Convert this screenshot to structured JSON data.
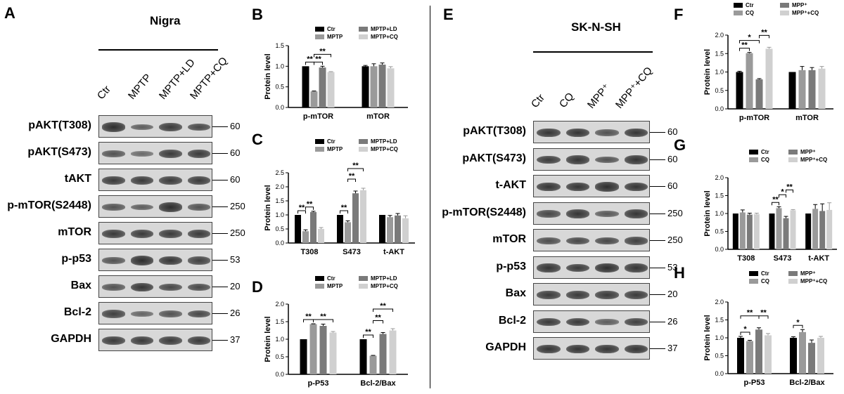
{
  "panel_labels": {
    "A": "A",
    "B": "B",
    "C": "C",
    "D": "D",
    "E": "E",
    "F": "F",
    "G": "G",
    "H": "H"
  },
  "blot_left": {
    "title": "Nigra",
    "lanes": [
      "Ctr",
      "MPTP",
      "MPTP+LD",
      "MPTP+CQ"
    ],
    "rows": [
      {
        "label": "pAKT(T308)",
        "mw": "60",
        "intensity": [
          0.9,
          0.5,
          0.8,
          0.7
        ]
      },
      {
        "label": "pAKT(S473)",
        "mw": "60",
        "intensity": [
          0.6,
          0.4,
          0.8,
          0.8
        ]
      },
      {
        "label": "tAKT",
        "mw": "60",
        "intensity": [
          0.8,
          0.8,
          0.8,
          0.8
        ]
      },
      {
        "label": "p-mTOR(S2448)",
        "mw": "250",
        "intensity": [
          0.6,
          0.5,
          0.9,
          0.6
        ]
      },
      {
        "label": "mTOR",
        "mw": "250",
        "intensity": [
          0.8,
          0.8,
          0.8,
          0.8
        ]
      },
      {
        "label": "p-p53",
        "mw": "53",
        "intensity": [
          0.6,
          0.9,
          0.85,
          0.75
        ]
      },
      {
        "label": "Bax",
        "mw": "20",
        "intensity": [
          0.6,
          0.85,
          0.7,
          0.7
        ]
      },
      {
        "label": "Bcl-2",
        "mw": "26",
        "intensity": [
          0.75,
          0.45,
          0.6,
          0.7
        ]
      },
      {
        "label": "GAPDH",
        "mw": "37",
        "intensity": [
          0.8,
          0.8,
          0.8,
          0.8
        ]
      }
    ]
  },
  "blot_right": {
    "title": "SK-N-SH",
    "lanes": [
      "Ctr",
      "CQ",
      "MPP⁺",
      "MPP⁺+CQ"
    ],
    "rows": [
      {
        "label": "pAKT(T308)",
        "mw": "60",
        "intensity": [
          0.85,
          0.85,
          0.6,
          0.85
        ]
      },
      {
        "label": "pAKT(S473)",
        "mw": "60",
        "intensity": [
          0.8,
          0.85,
          0.6,
          0.85
        ]
      },
      {
        "label": "t-AKT",
        "mw": "60",
        "intensity": [
          0.85,
          0.85,
          0.9,
          0.85
        ]
      },
      {
        "label": "p-mTOR(S2448)",
        "mw": "250",
        "intensity": [
          0.7,
          0.85,
          0.55,
          0.85
        ]
      },
      {
        "label": "mTOR",
        "mw": "250",
        "intensity": [
          0.65,
          0.7,
          0.7,
          0.75
        ]
      },
      {
        "label": "p-p53",
        "mw": "53",
        "intensity": [
          0.85,
          0.8,
          0.9,
          0.85
        ]
      },
      {
        "label": "Bax",
        "mw": "20",
        "intensity": [
          0.8,
          0.8,
          0.8,
          0.8
        ]
      },
      {
        "label": "Bcl-2",
        "mw": "26",
        "intensity": [
          0.8,
          0.8,
          0.5,
          0.75
        ]
      },
      {
        "label": "GAPDH",
        "mw": "37",
        "intensity": [
          0.85,
          0.85,
          0.85,
          0.85
        ]
      }
    ]
  },
  "chart_data": [
    {
      "panel": "B",
      "type": "bar",
      "ylabel": "Protein level",
      "ylim": [
        0,
        1.5
      ],
      "yticks": [
        "0.0",
        "0.5",
        "1.0",
        "1.5"
      ],
      "legend_layout": "2x2",
      "categories": [
        "p-mTOR",
        "mTOR"
      ],
      "series": [
        {
          "name": "Ctr",
          "color": "#000000",
          "values": [
            1.0,
            1.0
          ],
          "err": [
            0,
            0.02
          ]
        },
        {
          "name": "MPTP",
          "color": "#9a9a9a",
          "values": [
            0.39,
            1.0
          ],
          "err": [
            0.01,
            0.06
          ]
        },
        {
          "name": "MPTP+LD",
          "color": "#7a7a7a",
          "values": [
            0.97,
            1.04
          ],
          "err": [
            0.03,
            0.04
          ]
        },
        {
          "name": "MPTP+CQ",
          "color": "#d0d0d0",
          "values": [
            0.86,
            0.95
          ],
          "err": [
            0.01,
            0.04
          ]
        }
      ],
      "sig": [
        {
          "cat": 0,
          "from": 0,
          "to": 1,
          "label": "**",
          "level": 0
        },
        {
          "cat": 0,
          "from": 1,
          "to": 2,
          "label": "**",
          "level": 0
        },
        {
          "cat": 0,
          "from": 1,
          "to": 3,
          "label": "**",
          "level": 1
        }
      ]
    },
    {
      "panel": "C",
      "type": "bar",
      "ylabel": "Protein level",
      "ylim": [
        0,
        2.5
      ],
      "yticks": [
        "0.0",
        "0.5",
        "1.0",
        "1.5",
        "2.0",
        "2.5"
      ],
      "legend_layout": "2x2",
      "categories": [
        "T308",
        "S473",
        "t-AKT"
      ],
      "series": [
        {
          "name": "Ctr",
          "color": "#000000",
          "values": [
            1.0,
            1.0,
            1.0
          ],
          "err": [
            0,
            0,
            0
          ]
        },
        {
          "name": "MPTP",
          "color": "#9a9a9a",
          "values": [
            0.42,
            0.74,
            0.92
          ],
          "err": [
            0.05,
            0.05,
            0.06
          ]
        },
        {
          "name": "MPTP+LD",
          "color": "#7a7a7a",
          "values": [
            1.1,
            1.77,
            0.98
          ],
          "err": [
            0.03,
            0.08,
            0.07
          ]
        },
        {
          "name": "MPTP+CQ",
          "color": "#d0d0d0",
          "values": [
            0.5,
            1.88,
            0.88
          ],
          "err": [
            0.05,
            0.07,
            0.09
          ]
        }
      ],
      "sig": [
        {
          "cat": 0,
          "from": 0,
          "to": 1,
          "label": "**",
          "level": 0
        },
        {
          "cat": 0,
          "from": 1,
          "to": 2,
          "label": "**",
          "level": 0
        },
        {
          "cat": 1,
          "from": 0,
          "to": 1,
          "label": "**",
          "level": 0
        },
        {
          "cat": 1,
          "from": 1,
          "to": 2,
          "label": "**",
          "level": 1
        },
        {
          "cat": 1,
          "from": 1,
          "to": 3,
          "label": "**",
          "level": 2
        }
      ]
    },
    {
      "panel": "D",
      "type": "bar",
      "ylabel": "Protein level",
      "ylim": [
        0,
        2.0
      ],
      "yticks": [
        "0.0",
        "0.5",
        "1.0",
        "1.5",
        "2.0"
      ],
      "legend_layout": "2x2",
      "categories": [
        "p-P53",
        "Bcl-2/Bax"
      ],
      "series": [
        {
          "name": "Ctr",
          "color": "#000000",
          "values": [
            1.0,
            1.0
          ],
          "err": [
            0,
            0
          ]
        },
        {
          "name": "MPTP",
          "color": "#9a9a9a",
          "values": [
            1.43,
            0.53
          ],
          "err": [
            0.01,
            0.01
          ]
        },
        {
          "name": "MPTP+LD",
          "color": "#7a7a7a",
          "values": [
            1.38,
            1.15
          ],
          "err": [
            0.05,
            0.04
          ]
        },
        {
          "name": "MPTP+CQ",
          "color": "#d0d0d0",
          "values": [
            1.19,
            1.25
          ],
          "err": [
            0.03,
            0.05
          ]
        }
      ],
      "sig": [
        {
          "cat": 0,
          "from": 0,
          "to": 1,
          "label": "**",
          "level": 0
        },
        {
          "cat": 0,
          "from": 1,
          "to": 3,
          "label": "**",
          "level": 0
        },
        {
          "cat": 1,
          "from": 0,
          "to": 1,
          "label": "**",
          "level": 0
        },
        {
          "cat": 1,
          "from": 1,
          "to": 2,
          "label": "**",
          "level": 1
        },
        {
          "cat": 1,
          "from": 1,
          "to": 3,
          "label": "**",
          "level": 2
        }
      ]
    },
    {
      "panel": "F",
      "type": "bar",
      "ylabel": "Protein level",
      "ylim": [
        0,
        2.0
      ],
      "yticks": [
        "0.0",
        "0.5",
        "1.0",
        "1.5",
        "2.0"
      ],
      "legend_layout": "2x2",
      "categories": [
        "p-mTOR",
        "mTOR"
      ],
      "series": [
        {
          "name": "Ctr",
          "color": "#000000",
          "values": [
            1.0,
            1.0
          ],
          "err": [
            0.02,
            0
          ]
        },
        {
          "name": "CQ",
          "color": "#9a9a9a",
          "values": [
            1.51,
            1.05
          ],
          "err": [
            0.02,
            0.1
          ]
        },
        {
          "name": "MPP⁺",
          "color": "#7a7a7a",
          "values": [
            0.8,
            1.05
          ],
          "err": [
            0.02,
            0.07
          ]
        },
        {
          "name": "MPP⁺+CQ",
          "color": "#d0d0d0",
          "values": [
            1.63,
            1.09
          ],
          "err": [
            0.04,
            0.06
          ]
        }
      ],
      "sig": [
        {
          "cat": 0,
          "from": 0,
          "to": 1,
          "label": "**",
          "level": 0
        },
        {
          "cat": 0,
          "from": 0,
          "to": 2,
          "label": "*",
          "level": 1
        },
        {
          "cat": 0,
          "from": 2,
          "to": 3,
          "label": "**",
          "level": 1
        }
      ]
    },
    {
      "panel": "G",
      "type": "bar",
      "ylabel": "Protein level",
      "ylim": [
        0,
        2.0
      ],
      "yticks": [
        "0.0",
        "0.5",
        "1.0",
        "1.5",
        "2.0"
      ],
      "legend_layout": "2x2",
      "categories": [
        "T308",
        "S473",
        "t-AKT"
      ],
      "series": [
        {
          "name": "Ctr",
          "color": "#000000",
          "values": [
            1.0,
            1.0,
            1.0
          ],
          "err": [
            0,
            0,
            0
          ]
        },
        {
          "name": "CQ",
          "color": "#9a9a9a",
          "values": [
            1.03,
            1.15,
            1.13
          ],
          "err": [
            0.07,
            0.04,
            0.12
          ]
        },
        {
          "name": "MPP⁺",
          "color": "#7a7a7a",
          "values": [
            0.97,
            0.87,
            1.07
          ],
          "err": [
            0.04,
            0.05,
            0.2
          ]
        },
        {
          "name": "MPP⁺+CQ",
          "color": "#d0d0d0",
          "values": [
            0.98,
            1.09,
            1.1
          ],
          "err": [
            0.03,
            0.02,
            0.2
          ]
        }
      ],
      "sig": [
        {
          "cat": 1,
          "from": 0,
          "to": 1,
          "label": "**",
          "level": 0
        },
        {
          "cat": 1,
          "from": 1,
          "to": 2,
          "label": "*",
          "level": 1
        },
        {
          "cat": 1,
          "from": 2,
          "to": 3,
          "label": "**",
          "level": 2
        }
      ]
    },
    {
      "panel": "H",
      "type": "bar",
      "ylabel": "Protein level",
      "ylim": [
        0,
        2.0
      ],
      "yticks": [
        "0.0",
        "0.5",
        "1.0",
        "1.5",
        "2.0"
      ],
      "legend_layout": "2x2",
      "categories": [
        "p-P53",
        "Bcl-2/Bax"
      ],
      "series": [
        {
          "name": "Ctr",
          "color": "#000000",
          "values": [
            1.0,
            1.0
          ],
          "err": [
            0.04,
            0.03
          ]
        },
        {
          "name": "CQ",
          "color": "#9a9a9a",
          "values": [
            0.91,
            1.16
          ],
          "err": [
            0.02,
            0.07
          ]
        },
        {
          "name": "MPP⁺",
          "color": "#7a7a7a",
          "values": [
            1.23,
            0.86
          ],
          "err": [
            0.05,
            0.08
          ]
        },
        {
          "name": "MPP⁺+CQ",
          "color": "#d0d0d0",
          "values": [
            1.07,
            1.0
          ],
          "err": [
            0.05,
            0.04
          ]
        }
      ],
      "sig": [
        {
          "cat": 0,
          "from": 0,
          "to": 1,
          "label": "*",
          "level": 0
        },
        {
          "cat": 0,
          "from": 0,
          "to": 2,
          "label": "**",
          "level": 1
        },
        {
          "cat": 0,
          "from": 2,
          "to": 3,
          "label": "**",
          "level": 1
        },
        {
          "cat": 1,
          "from": 0,
          "to": 1,
          "label": "*",
          "level": 0
        }
      ]
    }
  ]
}
